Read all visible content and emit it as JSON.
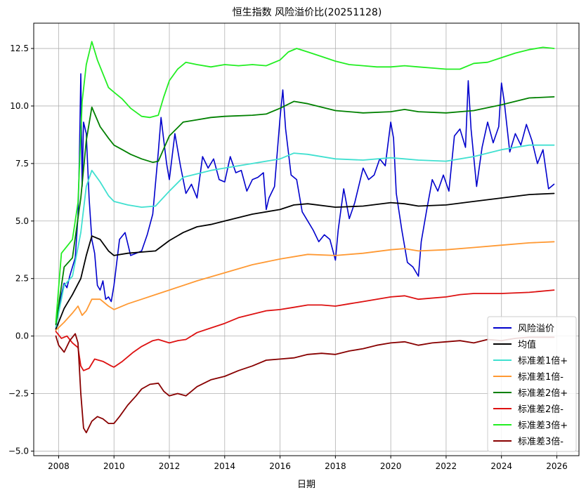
{
  "chart_data": {
    "type": "line",
    "title": "恒生指数 风险溢价比(20251128)",
    "xlabel": "日期",
    "ylabel": "",
    "xlim": [
      2007.1,
      2026.8
    ],
    "ylim": [
      -5.2,
      13.6
    ],
    "x_ticks": [
      2008,
      2010,
      2012,
      2014,
      2016,
      2018,
      2020,
      2022,
      2024,
      2026
    ],
    "y_ticks": [
      -5.0,
      -2.5,
      0.0,
      2.5,
      5.0,
      7.5,
      10.0,
      12.5
    ],
    "y_tick_labels": [
      "−5.0",
      "−2.5",
      "0.0",
      "2.5",
      "5.0",
      "7.5",
      "10.0",
      "12.5"
    ],
    "grid": true,
    "legend_position": "lower-right",
    "series": [
      {
        "name": "风险溢价",
        "color": "#0000cc",
        "x": [
          2007.9,
          2008.0,
          2008.1,
          2008.2,
          2008.3,
          2008.4,
          2008.5,
          2008.6,
          2008.7,
          2008.75,
          2008.8,
          2008.85,
          2008.9,
          2009.0,
          2009.1,
          2009.2,
          2009.3,
          2009.4,
          2009.5,
          2009.6,
          2009.7,
          2009.8,
          2009.9,
          2010.0,
          2010.2,
          2010.4,
          2010.6,
          2010.8,
          2011.0,
          2011.2,
          2011.4,
          2011.6,
          2011.7,
          2011.8,
          2011.9,
          2012.0,
          2012.2,
          2012.4,
          2012.6,
          2012.8,
          2013.0,
          2013.2,
          2013.4,
          2013.6,
          2013.8,
          2014.0,
          2014.2,
          2014.4,
          2014.6,
          2014.8,
          2015.0,
          2015.2,
          2015.4,
          2015.5,
          2015.6,
          2015.8,
          2016.0,
          2016.1,
          2016.2,
          2016.4,
          2016.6,
          2016.8,
          2017.0,
          2017.2,
          2017.4,
          2017.6,
          2017.8,
          2018.0,
          2018.1,
          2018.3,
          2018.5,
          2018.7,
          2018.9,
          2019.0,
          2019.2,
          2019.4,
          2019.6,
          2019.8,
          2020.0,
          2020.1,
          2020.2,
          2020.4,
          2020.6,
          2020.8,
          2021.0,
          2021.1,
          2021.3,
          2021.5,
          2021.7,
          2021.9,
          2022.1,
          2022.3,
          2022.5,
          2022.7,
          2022.8,
          2022.9,
          2023.1,
          2023.3,
          2023.5,
          2023.7,
          2023.9,
          2024.0,
          2024.1,
          2024.3,
          2024.5,
          2024.7,
          2024.9,
          2025.1,
          2025.3,
          2025.5,
          2025.7,
          2025.9
        ],
        "y": [
          0.3,
          1.2,
          1.8,
          2.3,
          2.1,
          2.6,
          3.0,
          3.4,
          5.2,
          7.8,
          11.4,
          6.5,
          9.3,
          8.8,
          6.0,
          4.2,
          3.6,
          2.2,
          2.0,
          2.4,
          1.6,
          1.7,
          1.5,
          2.2,
          4.2,
          4.5,
          3.5,
          3.6,
          3.7,
          4.4,
          5.3,
          8.0,
          9.5,
          8.5,
          7.5,
          6.8,
          8.8,
          7.4,
          6.2,
          6.6,
          6.0,
          7.8,
          7.3,
          7.7,
          6.8,
          6.7,
          7.8,
          7.1,
          7.2,
          6.3,
          6.8,
          6.9,
          7.1,
          5.5,
          6.0,
          6.5,
          9.5,
          10.7,
          9.0,
          7.0,
          6.8,
          5.4,
          5.0,
          4.6,
          4.1,
          4.4,
          4.2,
          3.3,
          4.6,
          6.4,
          5.1,
          5.8,
          6.8,
          7.3,
          6.8,
          7.0,
          7.7,
          7.4,
          9.3,
          8.6,
          6.2,
          4.6,
          3.2,
          3.0,
          2.6,
          4.1,
          5.5,
          6.8,
          6.3,
          7.0,
          6.3,
          8.7,
          9.0,
          8.2,
          11.1,
          9.0,
          6.5,
          8.2,
          9.3,
          8.4,
          9.1,
          11.0,
          10.2,
          8.0,
          8.8,
          8.3,
          9.2,
          8.5,
          7.5,
          8.1,
          6.4,
          6.6
        ]
      },
      {
        "name": "均值",
        "color": "#000000",
        "x": [
          2007.9,
          2008.2,
          2008.5,
          2008.8,
          2009.0,
          2009.2,
          2009.5,
          2009.8,
          2010.0,
          2010.5,
          2011.0,
          2011.5,
          2012.0,
          2012.5,
          2013.0,
          2013.5,
          2014.0,
          2015.0,
          2016.0,
          2016.5,
          2017.0,
          2018.0,
          2019.0,
          2020.0,
          2020.5,
          2021.0,
          2022.0,
          2023.0,
          2024.0,
          2025.0,
          2025.9
        ],
        "y": [
          0.3,
          1.2,
          1.8,
          2.5,
          3.5,
          4.35,
          4.2,
          3.7,
          3.5,
          3.6,
          3.65,
          3.7,
          4.15,
          4.5,
          4.75,
          4.85,
          5.0,
          5.3,
          5.5,
          5.7,
          5.75,
          5.6,
          5.65,
          5.8,
          5.75,
          5.65,
          5.7,
          5.85,
          6.0,
          6.15,
          6.2
        ]
      },
      {
        "name": "标准差1倍+",
        "color": "#40e0d0",
        "x": [
          2007.9,
          2008.2,
          2008.5,
          2008.8,
          2009.0,
          2009.2,
          2009.5,
          2009.8,
          2010.0,
          2010.5,
          2011.0,
          2011.5,
          2012.0,
          2012.5,
          2013.0,
          2013.5,
          2014.0,
          2015.0,
          2016.0,
          2016.5,
          2017.0,
          2018.0,
          2019.0,
          2020.0,
          2020.5,
          2021.0,
          2022.0,
          2023.0,
          2024.0,
          2025.0,
          2025.9
        ],
        "y": [
          0.4,
          2.2,
          2.6,
          4.5,
          6.5,
          7.2,
          6.7,
          6.1,
          5.85,
          5.7,
          5.6,
          5.65,
          6.3,
          6.9,
          7.05,
          7.2,
          7.3,
          7.5,
          7.7,
          7.95,
          7.9,
          7.7,
          7.65,
          7.75,
          7.7,
          7.65,
          7.6,
          7.8,
          8.1,
          8.3,
          8.3
        ]
      },
      {
        "name": "标准差1倍-",
        "color": "#ff9933",
        "x": [
          2007.9,
          2008.2,
          2008.5,
          2008.7,
          2008.85,
          2009.0,
          2009.2,
          2009.5,
          2009.8,
          2010.0,
          2010.5,
          2011.0,
          2011.5,
          2012.0,
          2013.0,
          2014.0,
          2015.0,
          2016.0,
          2017.0,
          2018.0,
          2019.0,
          2020.0,
          2020.5,
          2021.0,
          2022.0,
          2023.0,
          2024.0,
          2025.0,
          2025.9
        ],
        "y": [
          0.25,
          0.6,
          1.0,
          1.3,
          0.9,
          1.1,
          1.6,
          1.6,
          1.3,
          1.15,
          1.4,
          1.6,
          1.8,
          2.0,
          2.4,
          2.75,
          3.1,
          3.35,
          3.55,
          3.5,
          3.6,
          3.75,
          3.8,
          3.7,
          3.75,
          3.85,
          3.95,
          4.05,
          4.1
        ]
      },
      {
        "name": "标准差2倍+",
        "color": "#008000",
        "x": [
          2007.9,
          2008.2,
          2008.5,
          2008.8,
          2009.0,
          2009.2,
          2009.5,
          2009.8,
          2010.0,
          2010.3,
          2010.6,
          2011.0,
          2011.4,
          2011.6,
          2012.0,
          2012.5,
          2013.0,
          2013.5,
          2014.0,
          2015.0,
          2015.5,
          2016.0,
          2016.5,
          2017.0,
          2018.0,
          2019.0,
          2020.0,
          2020.5,
          2021.0,
          2022.0,
          2023.0,
          2024.0,
          2025.0,
          2025.9
        ],
        "y": [
          0.5,
          3.0,
          3.4,
          6.0,
          8.5,
          9.95,
          9.1,
          8.6,
          8.3,
          8.1,
          7.9,
          7.7,
          7.55,
          7.6,
          8.7,
          9.3,
          9.4,
          9.5,
          9.55,
          9.6,
          9.65,
          9.9,
          10.2,
          10.1,
          9.8,
          9.7,
          9.75,
          9.85,
          9.75,
          9.7,
          9.8,
          10.05,
          10.35,
          10.4
        ]
      },
      {
        "name": "标准差2倍-",
        "color": "#dd1111",
        "x": [
          2007.9,
          2008.1,
          2008.3,
          2008.5,
          2008.7,
          2008.8,
          2008.9,
          2009.1,
          2009.3,
          2009.6,
          2009.9,
          2010.0,
          2010.3,
          2010.7,
          2011.0,
          2011.4,
          2011.6,
          2012.0,
          2012.3,
          2012.6,
          2013.0,
          2013.5,
          2014.0,
          2014.5,
          2015.0,
          2015.5,
          2016.0,
          2016.5,
          2017.0,
          2017.5,
          2018.0,
          2018.5,
          2019.0,
          2020.0,
          2020.5,
          2021.0,
          2022.0,
          2022.5,
          2023.0,
          2024.0,
          2025.0,
          2025.9
        ],
        "y": [
          0.2,
          -0.1,
          0.0,
          -0.3,
          -0.5,
          -1.3,
          -1.5,
          -1.4,
          -1.0,
          -1.1,
          -1.3,
          -1.35,
          -1.1,
          -0.7,
          -0.45,
          -0.2,
          -0.15,
          -0.3,
          -0.2,
          -0.15,
          0.15,
          0.35,
          0.55,
          0.8,
          0.95,
          1.1,
          1.15,
          1.25,
          1.35,
          1.35,
          1.3,
          1.4,
          1.5,
          1.7,
          1.75,
          1.6,
          1.7,
          1.8,
          1.85,
          1.85,
          1.9,
          2.0
        ]
      },
      {
        "name": "标准差3倍+",
        "color": "#22ee22",
        "x": [
          2007.9,
          2008.1,
          2008.3,
          2008.5,
          2008.7,
          2008.85,
          2009.0,
          2009.2,
          2009.4,
          2009.6,
          2009.8,
          2010.0,
          2010.3,
          2010.6,
          2011.0,
          2011.3,
          2011.6,
          2011.8,
          2012.0,
          2012.3,
          2012.6,
          2013.0,
          2013.5,
          2014.0,
          2014.5,
          2015.0,
          2015.5,
          2016.0,
          2016.3,
          2016.6,
          2017.0,
          2017.5,
          2018.0,
          2018.5,
          2019.0,
          2019.5,
          2020.0,
          2020.5,
          2021.0,
          2021.5,
          2022.0,
          2022.5,
          2023.0,
          2023.5,
          2024.0,
          2024.5,
          2025.0,
          2025.5,
          2025.9
        ],
        "y": [
          0.6,
          3.6,
          3.9,
          4.2,
          5.8,
          10.2,
          11.8,
          12.8,
          12.0,
          11.4,
          10.8,
          10.6,
          10.3,
          9.9,
          9.55,
          9.5,
          9.6,
          10.4,
          11.1,
          11.6,
          11.9,
          11.8,
          11.7,
          11.8,
          11.75,
          11.8,
          11.75,
          12.0,
          12.35,
          12.5,
          12.35,
          12.15,
          11.95,
          11.8,
          11.75,
          11.7,
          11.7,
          11.75,
          11.7,
          11.65,
          11.6,
          11.6,
          11.85,
          11.9,
          12.1,
          12.3,
          12.45,
          12.55,
          12.5
        ]
      },
      {
        "name": "标准差3倍-",
        "color": "#880000",
        "x": [
          2007.9,
          2008.0,
          2008.2,
          2008.4,
          2008.6,
          2008.7,
          2008.8,
          2008.9,
          2009.0,
          2009.2,
          2009.4,
          2009.6,
          2009.8,
          2010.0,
          2010.2,
          2010.5,
          2010.8,
          2011.0,
          2011.3,
          2011.6,
          2011.8,
          2012.0,
          2012.3,
          2012.6,
          2013.0,
          2013.5,
          2014.0,
          2014.5,
          2015.0,
          2015.5,
          2016.0,
          2016.5,
          2017.0,
          2017.5,
          2018.0,
          2018.5,
          2019.0,
          2019.5,
          2020.0,
          2020.5,
          2021.0,
          2021.5,
          2022.0,
          2022.5,
          2023.0,
          2023.5,
          2024.0,
          2024.5,
          2025.0,
          2025.5,
          2025.9
        ],
        "y": [
          0.0,
          -0.4,
          -0.7,
          -0.2,
          0.1,
          -0.3,
          -2.5,
          -4.0,
          -4.2,
          -3.7,
          -3.5,
          -3.6,
          -3.8,
          -3.8,
          -3.5,
          -3.0,
          -2.6,
          -2.3,
          -2.1,
          -2.05,
          -2.4,
          -2.6,
          -2.5,
          -2.6,
          -2.2,
          -1.9,
          -1.75,
          -1.5,
          -1.3,
          -1.05,
          -1.0,
          -0.95,
          -0.8,
          -0.75,
          -0.8,
          -0.65,
          -0.55,
          -0.4,
          -0.3,
          -0.25,
          -0.4,
          -0.3,
          -0.25,
          -0.2,
          -0.3,
          -0.15,
          -0.2,
          -0.1,
          -0.05,
          -0.05,
          -0.05
        ]
      }
    ]
  }
}
